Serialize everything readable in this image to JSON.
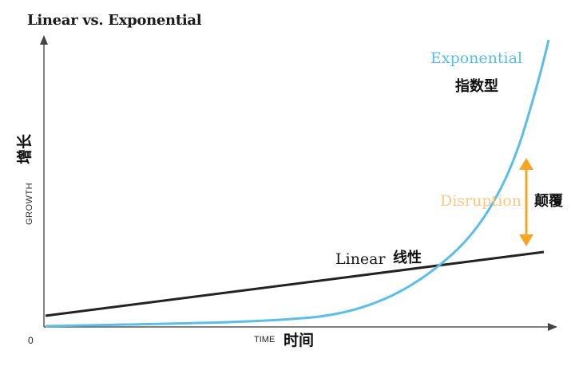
{
  "title": "Linear vs. Exponential",
  "y_axis": {
    "label_en": "GROWTH",
    "label_cn": "增长"
  },
  "x_axis": {
    "label_en": "TIME",
    "label_cn": "时间",
    "origin": "0"
  },
  "curves": {
    "exponential": {
      "label_en": "Exponential",
      "label_cn": "指数型",
      "color": "#5bbde8"
    },
    "linear": {
      "label_en": "Linear",
      "label_cn": "线性",
      "color": "#222222"
    }
  },
  "disruption": {
    "label_en": "Disruption",
    "label_cn": "颠覆",
    "color": "#f5a623"
  }
}
